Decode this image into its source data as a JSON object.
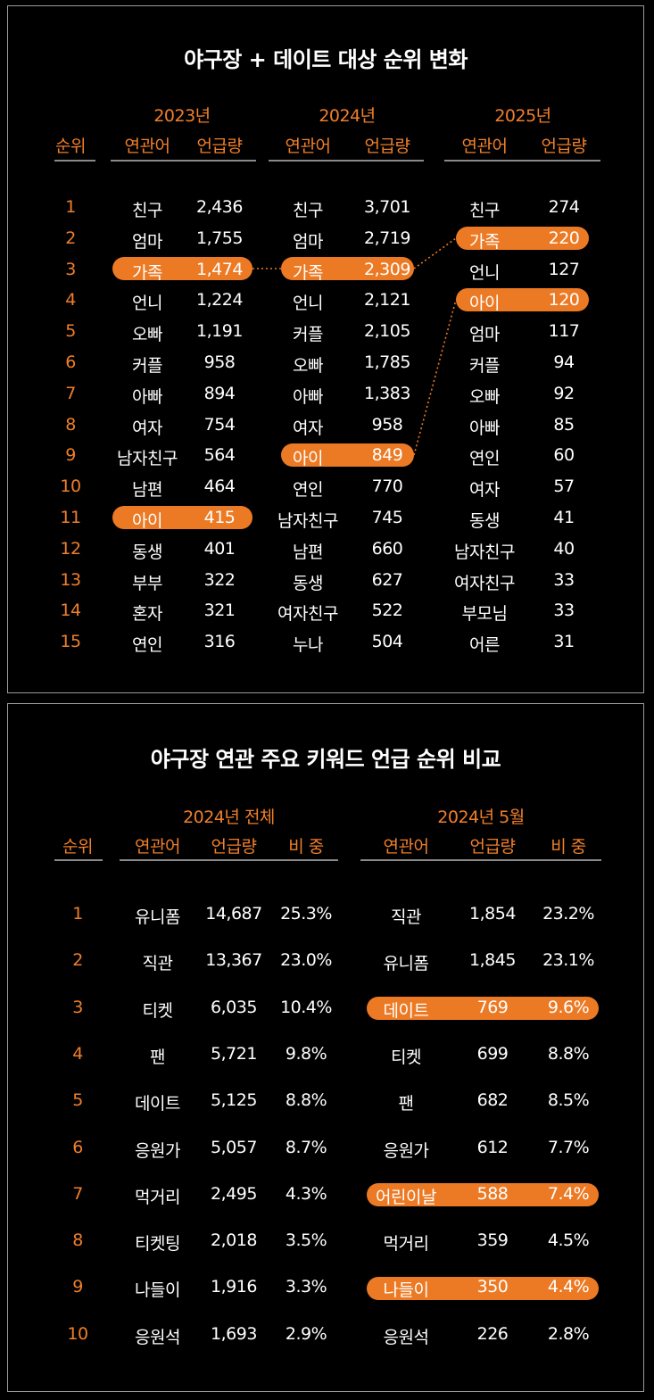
{
  "ranking_change": {
    "title": "야구장 + 데이트 대상 순위 변화",
    "rank_header": "순위",
    "keyword_header": "연관어",
    "count_header": "언급량",
    "years": [
      {
        "label": "2023년",
        "rows": [
          {
            "keyword": "친구",
            "count": "2,436"
          },
          {
            "keyword": "엄마",
            "count": "1,755"
          },
          {
            "keyword": "가족",
            "count": "1,474"
          },
          {
            "keyword": "언니",
            "count": "1,224"
          },
          {
            "keyword": "오빠",
            "count": "1,191"
          },
          {
            "keyword": "커플",
            "count": "958"
          },
          {
            "keyword": "아빠",
            "count": "894"
          },
          {
            "keyword": "여자",
            "count": "754"
          },
          {
            "keyword": "남자친구",
            "count": "564"
          },
          {
            "keyword": "남편",
            "count": "464"
          },
          {
            "keyword": "아이",
            "count": "415"
          },
          {
            "keyword": "동생",
            "count": "401"
          },
          {
            "keyword": "부부",
            "count": "322"
          },
          {
            "keyword": "혼자",
            "count": "321"
          },
          {
            "keyword": "연인",
            "count": "316"
          }
        ]
      },
      {
        "label": "2024년",
        "rows": [
          {
            "keyword": "친구",
            "count": "3,701"
          },
          {
            "keyword": "엄마",
            "count": "2,719"
          },
          {
            "keyword": "가족",
            "count": "2,309"
          },
          {
            "keyword": "언니",
            "count": "2,121"
          },
          {
            "keyword": "커플",
            "count": "2,105"
          },
          {
            "keyword": "오빠",
            "count": "1,785"
          },
          {
            "keyword": "아빠",
            "count": "1,383"
          },
          {
            "keyword": "여자",
            "count": "958"
          },
          {
            "keyword": "아이",
            "count": "849"
          },
          {
            "keyword": "연인",
            "count": "770"
          },
          {
            "keyword": "남자친구",
            "count": "745"
          },
          {
            "keyword": "남편",
            "count": "660"
          },
          {
            "keyword": "동생",
            "count": "627"
          },
          {
            "keyword": "여자친구",
            "count": "522"
          },
          {
            "keyword": "누나",
            "count": "504"
          }
        ]
      },
      {
        "label": "2025년",
        "rows": [
          {
            "keyword": "친구",
            "count": "274"
          },
          {
            "keyword": "가족",
            "count": "220"
          },
          {
            "keyword": "언니",
            "count": "127"
          },
          {
            "keyword": "아이",
            "count": "120"
          },
          {
            "keyword": "엄마",
            "count": "117"
          },
          {
            "keyword": "커플",
            "count": "94"
          },
          {
            "keyword": "오빠",
            "count": "92"
          },
          {
            "keyword": "아빠",
            "count": "85"
          },
          {
            "keyword": "연인",
            "count": "60"
          },
          {
            "keyword": "여자",
            "count": "57"
          },
          {
            "keyword": "동생",
            "count": "41"
          },
          {
            "keyword": "남자친구",
            "count": "40"
          },
          {
            "keyword": "여자친구",
            "count": "33"
          },
          {
            "keyword": "부모님",
            "count": "33"
          },
          {
            "keyword": "어른",
            "count": "31"
          }
        ]
      }
    ],
    "ranks": [
      "1",
      "2",
      "3",
      "4",
      "5",
      "6",
      "7",
      "8",
      "9",
      "10",
      "11",
      "12",
      "13",
      "14",
      "15"
    ],
    "highlight_color": "#ec7a24",
    "accent_color": "#f07f2a"
  },
  "keyword_compare": {
    "title": "야구장 연관 주요 키워드 언급 순위 비교",
    "rank_header": "순위",
    "keyword_header": "연관어",
    "count_header": "언급량",
    "share_header": "비 중",
    "ranks": [
      "1",
      "2",
      "3",
      "4",
      "5",
      "6",
      "7",
      "8",
      "9",
      "10"
    ],
    "groups": [
      {
        "label": "2024년 전체",
        "rows": [
          {
            "keyword": "유니폼",
            "count": "14,687",
            "share": "25.3%"
          },
          {
            "keyword": "직관",
            "count": "13,367",
            "share": "23.0%"
          },
          {
            "keyword": "티켓",
            "count": "6,035",
            "share": "10.4%"
          },
          {
            "keyword": "팬",
            "count": "5,721",
            "share": "9.8%"
          },
          {
            "keyword": "데이트",
            "count": "5,125",
            "share": "8.8%"
          },
          {
            "keyword": "응원가",
            "count": "5,057",
            "share": "8.7%"
          },
          {
            "keyword": "먹거리",
            "count": "2,495",
            "share": "4.3%"
          },
          {
            "keyword": "티켓팅",
            "count": "2,018",
            "share": "3.5%"
          },
          {
            "keyword": "나들이",
            "count": "1,916",
            "share": "3.3%"
          },
          {
            "keyword": "응원석",
            "count": "1,693",
            "share": "2.9%"
          }
        ]
      },
      {
        "label": "2024년 5월",
        "rows": [
          {
            "keyword": "직관",
            "count": "1,854",
            "share": "23.2%"
          },
          {
            "keyword": "유니폼",
            "count": "1,845",
            "share": "23.1%"
          },
          {
            "keyword": "데이트",
            "count": "769",
            "share": "9.6%"
          },
          {
            "keyword": "티켓",
            "count": "699",
            "share": "8.8%"
          },
          {
            "keyword": "팬",
            "count": "682",
            "share": "8.5%"
          },
          {
            "keyword": "응원가",
            "count": "612",
            "share": "7.7%"
          },
          {
            "keyword": "어린이날",
            "count": "588",
            "share": "7.4%"
          },
          {
            "keyword": "먹거리",
            "count": "359",
            "share": "4.5%"
          },
          {
            "keyword": "나들이",
            "count": "350",
            "share": "4.4%"
          },
          {
            "keyword": "응원석",
            "count": "226",
            "share": "2.8%"
          }
        ]
      }
    ]
  }
}
